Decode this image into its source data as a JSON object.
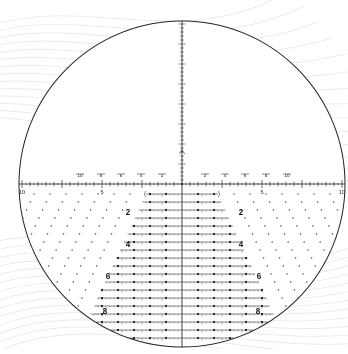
{
  "colors": {
    "background": "#ffffff",
    "topo_lines": "#e7e7e7",
    "scope_fill": "#ffffff",
    "scope_outline": "#222222",
    "reticle_ink": "#111111",
    "dot_ink": "#555555"
  },
  "horizontal_scale": {
    "labels_outer": [
      "10",
      "5",
      "5",
      "10"
    ],
    "labels_inner": [
      "10",
      "8",
      "6",
      "4",
      "2",
      "2",
      "4",
      "6",
      "8",
      "10"
    ]
  },
  "tree_row_labels": {
    "left": [
      "2",
      "4",
      "6",
      "8"
    ],
    "right": [
      "2",
      "4",
      "6",
      "8"
    ]
  }
}
